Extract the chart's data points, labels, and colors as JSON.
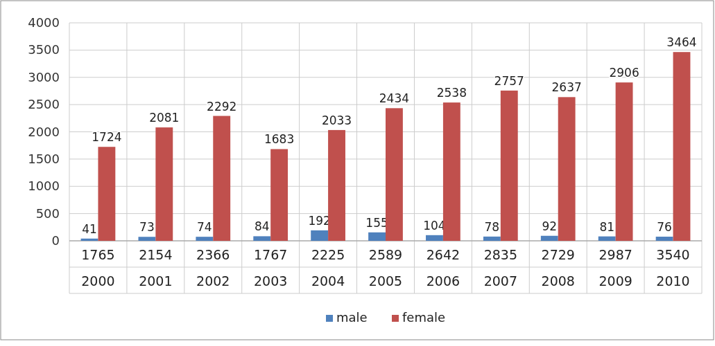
{
  "chart_data": {
    "type": "bar",
    "categories": [
      "2000",
      "2001",
      "2002",
      "2003",
      "2004",
      "2005",
      "2006",
      "2007",
      "2008",
      "2009",
      "2010"
    ],
    "series": [
      {
        "name": "male",
        "color": "#4f81bd",
        "values": [
          41,
          73,
          74,
          84,
          192,
          155,
          104,
          78,
          92,
          81,
          76
        ]
      },
      {
        "name": "female",
        "color": "#c0504d",
        "values": [
          1724,
          2081,
          2292,
          1683,
          2033,
          2434,
          2538,
          2757,
          2637,
          2906,
          3464
        ]
      }
    ],
    "totals": [
      "1765",
      "2154",
      "2366",
      "1767",
      "2225",
      "2589",
      "2642",
      "2835",
      "2729",
      "2987",
      "3540"
    ],
    "ylim": [
      0,
      4000
    ],
    "yticks": [
      0,
      500,
      1000,
      1500,
      2000,
      2500,
      3000,
      3500,
      4000
    ],
    "grid": "y",
    "data_labels": true,
    "legend": "bottom"
  }
}
